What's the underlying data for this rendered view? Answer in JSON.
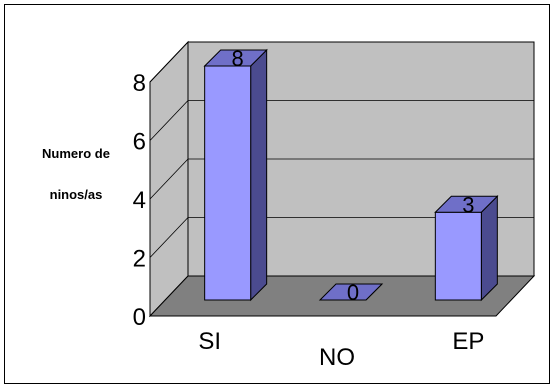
{
  "chart_data": {
    "type": "bar",
    "categories": [
      "SI",
      "NO",
      "EP"
    ],
    "values": [
      8,
      0,
      3
    ],
    "ylabel_lines": [
      "Numero de",
      "ninos/as"
    ],
    "ylim": [
      0,
      8
    ],
    "yticks": [
      0,
      2,
      4,
      6,
      8
    ],
    "grid": true,
    "data_labels": [
      "8",
      "0",
      "3"
    ],
    "colors": {
      "bar_front": "#9999ff",
      "bar_side": "#4b4b8f",
      "bar_top": "#6f6fc8",
      "wall": "#c0c0c0",
      "floor": "#808080"
    }
  }
}
